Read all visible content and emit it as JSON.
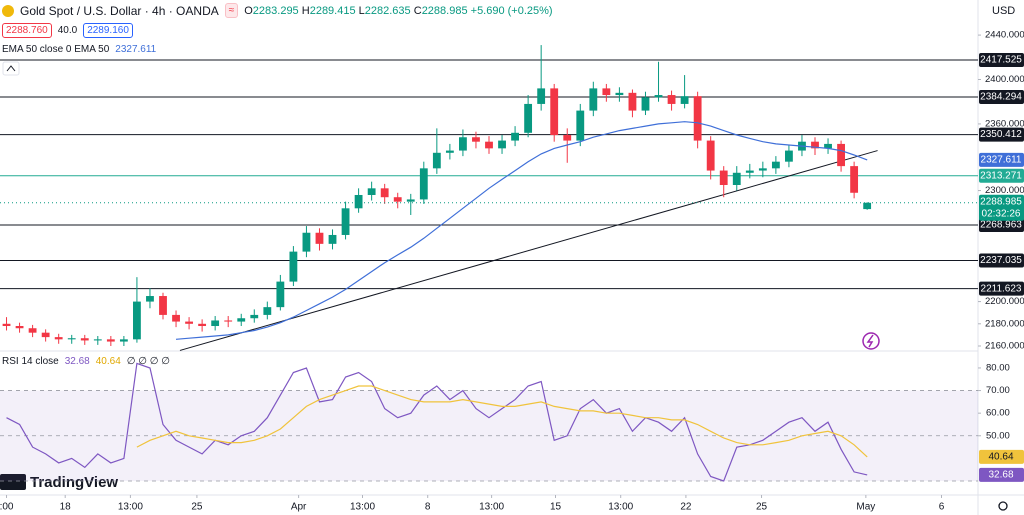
{
  "header": {
    "symbol": "Gold Spot / U.S. Dollar · 4h · OANDA",
    "ohlc_prefix": [
      "O",
      "H",
      "L",
      "C"
    ],
    "change": "+5.690 (+0.25%)",
    "sell": "2288.760",
    "spread": "40.0",
    "buy": "2289.160",
    "ema_label": "EMA 50 close 0 EMA 50",
    "currency": "USD",
    "countdown": "02:32:26",
    "rsi_label": "RSI 14 close",
    "rsi_extra": "∅ ∅ ∅ ∅",
    "logo": "TradingView"
  },
  "chart_data": [
    {
      "type": "candlestick",
      "xlim": [
        -0.5,
        74.5
      ],
      "ylim": [
        2155.5,
        2471.6
      ],
      "xticks": [
        {
          "value": 0,
          "label": ":00"
        },
        {
          "value": 4.5,
          "label": "18"
        },
        {
          "value": 9.5,
          "label": "13:00"
        },
        {
          "value": 14.6,
          "label": "25"
        },
        {
          "value": 22.4,
          "label": "Apr"
        },
        {
          "value": 27.3,
          "label": "13:00"
        },
        {
          "value": 32.3,
          "label": "8"
        },
        {
          "value": 37.2,
          "label": "13:00"
        },
        {
          "value": 42.1,
          "label": "15"
        },
        {
          "value": 47.1,
          "label": "13:00"
        },
        {
          "value": 52.1,
          "label": "22"
        },
        {
          "value": 57.9,
          "label": "25"
        },
        {
          "value": 65.9,
          "label": "May"
        },
        {
          "value": 71.7,
          "label": "6"
        }
      ],
      "yticks": [
        {
          "value": 2160,
          "label": "2160.000"
        },
        {
          "value": 2180,
          "label": "2180.000"
        },
        {
          "value": 2200,
          "label": "2200.000"
        },
        {
          "value": 2300,
          "label": "2300.000"
        },
        {
          "value": 2360,
          "label": "2360.000"
        },
        {
          "value": 2400,
          "label": "2400.000"
        },
        {
          "value": 2440,
          "label": "2440.000"
        }
      ],
      "up_color": "#089981",
      "down_color": "#f23645",
      "candles": {
        "open": [
          2180,
          2178,
          2176,
          2172,
          2168,
          2166,
          2167,
          2165,
          2166,
          2164,
          2166,
          2200,
          2205,
          2188,
          2182,
          2180,
          2178,
          2183,
          2182,
          2185,
          2188,
          2195,
          2218,
          2245,
          2262,
          2252,
          2260,
          2284,
          2296,
          2302,
          2294,
          2290,
          2292,
          2320,
          2334,
          2336,
          2348,
          2344,
          2338,
          2345,
          2352,
          2378,
          2392,
          2350,
          2345,
          2372,
          2392,
          2386,
          2388,
          2372,
          2384,
          2386,
          2378,
          2385,
          2345,
          2318,
          2305,
          2316,
          2318,
          2320,
          2326,
          2336,
          2344,
          2338,
          2342,
          2322,
          2283.295
        ],
        "high": [
          2186,
          2181,
          2179,
          2175,
          2171,
          2170,
          2170,
          2169,
          2169,
          2169,
          2222,
          2212,
          2208,
          2192,
          2186,
          2184,
          2187,
          2187,
          2189,
          2193,
          2200,
          2224,
          2250,
          2268,
          2266,
          2265,
          2290,
          2302,
          2308,
          2306,
          2298,
          2297,
          2326,
          2356,
          2342,
          2355,
          2353,
          2349,
          2350,
          2358,
          2386,
          2431,
          2396,
          2356,
          2378,
          2398,
          2396,
          2393,
          2391,
          2389,
          2416,
          2390,
          2404,
          2389,
          2349,
          2322,
          2322,
          2324,
          2326,
          2331,
          2341,
          2350,
          2348,
          2347,
          2345,
          2326,
          2289.415
        ],
        "low": [
          2174,
          2172,
          2168,
          2164,
          2162,
          2162,
          2161,
          2161,
          2160,
          2160,
          2163,
          2194,
          2184,
          2177,
          2175,
          2173,
          2174,
          2177,
          2178,
          2181,
          2184,
          2192,
          2214,
          2240,
          2246,
          2247,
          2256,
          2280,
          2291,
          2288,
          2284,
          2278,
          2288,
          2315,
          2328,
          2331,
          2338,
          2333,
          2333,
          2340,
          2348,
          2372,
          2344,
          2325,
          2340,
          2367,
          2380,
          2380,
          2366,
          2368,
          2380,
          2372,
          2374,
          2338,
          2310,
          2294,
          2300,
          2311,
          2312,
          2315,
          2321,
          2331,
          2332,
          2333,
          2317,
          2293,
          2282.635
        ],
        "close": [
          2178,
          2176,
          2172,
          2168,
          2166,
          2167,
          2165,
          2166,
          2164,
          2166,
          2200,
          2205,
          2188,
          2182,
          2180,
          2178,
          2183,
          2182,
          2185,
          2188,
          2195,
          2218,
          2245,
          2262,
          2252,
          2260,
          2284,
          2296,
          2302,
          2294,
          2290,
          2292,
          2320,
          2334,
          2336,
          2348,
          2344,
          2338,
          2345,
          2352,
          2378,
          2392,
          2350,
          2345,
          2372,
          2392,
          2386,
          2388,
          2372,
          2384,
          2386,
          2378,
          2385,
          2345,
          2318,
          2305,
          2316,
          2318,
          2320,
          2326,
          2336,
          2344,
          2338,
          2342,
          2322,
          2298,
          2288.985
        ]
      },
      "ema": {
        "name": "EMA 50",
        "color": "#3f6fd8",
        "values": [
          null,
          null,
          null,
          null,
          null,
          null,
          null,
          null,
          null,
          null,
          null,
          null,
          null,
          2166,
          2167,
          2168,
          2169,
          2170,
          2172,
          2174,
          2177,
          2181,
          2186,
          2192,
          2198,
          2204,
          2211,
          2219,
          2227,
          2235,
          2242,
          2249,
          2257,
          2266,
          2275,
          2284,
          2293,
          2302,
          2310,
          2318,
          2326,
          2333,
          2338,
          2341,
          2344,
          2348,
          2351,
          2354,
          2356,
          2358,
          2360,
          2361,
          2362,
          2361,
          2358,
          2354,
          2350,
          2347,
          2344,
          2342,
          2341,
          2340,
          2339,
          2338,
          2336,
          2332,
          2327.611
        ]
      },
      "levels": [
        2417.525,
        2384.294,
        2350.412,
        2313.271,
        2268.963,
        2237.035,
        2211.623
      ],
      "level_colors": [
        "#131722",
        "#131722",
        "#131722",
        "#22ab94",
        "#131722",
        "#131722",
        "#131722"
      ],
      "trendline": {
        "x": [
          13.3,
          66.8
        ],
        "y": [
          2156,
          2336
        ],
        "color": "#131722"
      }
    },
    {
      "type": "line",
      "ylim": [
        23.8,
        87.5
      ],
      "yticks": [
        {
          "value": 80,
          "label": "80.00"
        },
        {
          "value": 70,
          "label": "70.00"
        },
        {
          "value": 60,
          "label": "60.00"
        },
        {
          "value": 50,
          "label": "50.00"
        }
      ],
      "levels": [
        70,
        50,
        30
      ],
      "series": [
        {
          "name": "RSI 14",
          "color": "#7e57c2",
          "values": [
            58,
            55,
            45,
            42,
            38,
            40,
            36,
            42,
            38,
            40,
            82,
            80,
            55,
            48,
            45,
            42,
            48,
            46,
            50,
            52,
            58,
            68,
            78,
            80,
            65,
            66,
            76,
            78,
            74,
            62,
            58,
            60,
            68,
            72,
            66,
            70,
            62,
            58,
            62,
            66,
            72,
            74,
            48,
            50,
            62,
            66,
            60,
            62,
            52,
            58,
            56,
            52,
            58,
            42,
            32,
            30,
            45,
            46,
            48,
            52,
            56,
            58,
            52,
            56,
            44,
            34,
            32.68
          ]
        },
        {
          "name": "RSI MA",
          "color": "#f0c33c",
          "values": [
            null,
            null,
            null,
            null,
            null,
            null,
            null,
            null,
            null,
            null,
            45,
            48,
            50,
            52,
            50,
            49,
            48,
            47,
            47,
            48,
            50,
            53,
            58,
            63,
            66,
            68,
            70,
            72,
            72,
            70,
            68,
            66,
            65,
            65,
            65,
            66,
            65,
            64,
            63,
            63,
            64,
            65,
            63,
            62,
            61,
            61,
            60,
            60,
            59,
            58,
            58,
            57,
            57,
            55,
            52,
            49,
            47,
            46,
            46,
            47,
            48,
            50,
            51,
            52,
            50,
            46,
            40.64
          ]
        }
      ]
    }
  ]
}
